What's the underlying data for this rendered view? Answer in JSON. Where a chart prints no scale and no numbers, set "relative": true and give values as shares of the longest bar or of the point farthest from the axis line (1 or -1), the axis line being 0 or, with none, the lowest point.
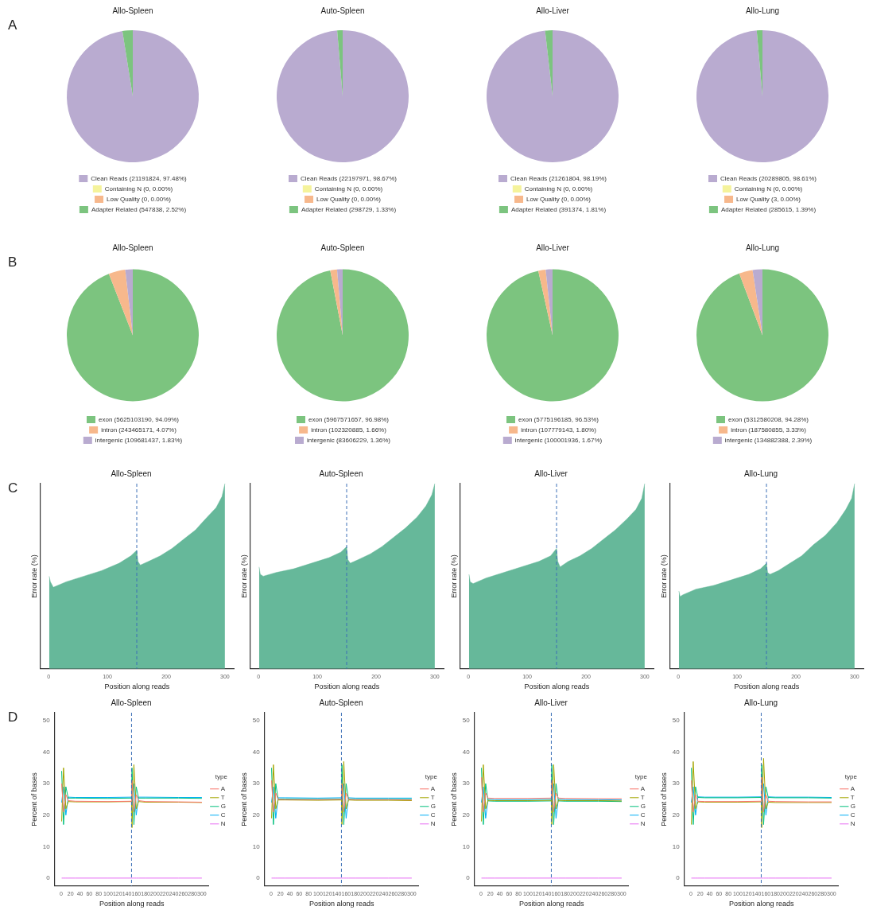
{
  "chart_data": [
    {
      "type": "pie",
      "title": "Allo-Spleen",
      "annotations": [
        "A"
      ],
      "legend": "bottom",
      "categories": [
        "Clean Reads (21191824, 97.48%)",
        "Containing N (0, 0.00%)",
        "Low Quality (0, 0.00%)",
        "Adapter Related (547838, 2.52%)"
      ],
      "values": [
        97.48,
        0,
        0,
        2.52
      ],
      "colors": [
        "#b9abd0",
        "#f5f39b",
        "#f7b88c",
        "#7cc47f"
      ]
    },
    {
      "type": "pie",
      "title": "Auto-Spleen",
      "legend": "bottom",
      "categories": [
        "Clean Reads (22197971, 98.67%)",
        "Containing N (0, 0.00%)",
        "Low Quality (0, 0.00%)",
        "Adapter Related (298729, 1.33%)"
      ],
      "values": [
        98.67,
        0,
        0,
        1.33
      ],
      "colors": [
        "#b9abd0",
        "#f5f39b",
        "#f7b88c",
        "#7cc47f"
      ]
    },
    {
      "type": "pie",
      "title": "Allo-Liver",
      "legend": "bottom",
      "categories": [
        "Clean Reads (21261804, 98.19%)",
        "Containing N (0, 0.00%)",
        "Low Quality (0, 0.00%)",
        "Adapter Related (391374, 1.81%)"
      ],
      "values": [
        98.19,
        0,
        0,
        1.81
      ],
      "colors": [
        "#b9abd0",
        "#f5f39b",
        "#f7b88c",
        "#7cc47f"
      ]
    },
    {
      "type": "pie",
      "title": "Allo-Lung",
      "legend": "bottom",
      "categories": [
        "Clean Reads (20289805, 98.61%)",
        "Containing N (0, 0.00%)",
        "Low Quality (3, 0.00%)",
        "Adapter Related (285615, 1.39%)"
      ],
      "values": [
        98.61,
        0,
        0,
        1.39
      ],
      "colors": [
        "#b9abd0",
        "#f5f39b",
        "#f7b88c",
        "#7cc47f"
      ]
    },
    {
      "type": "pie",
      "title": "Allo-Spleen",
      "annotations": [
        "B"
      ],
      "legend": "bottom",
      "categories": [
        "exon (5625103190, 94.09%)",
        "intron (243465171, 4.07%)",
        "intergenic (109681437, 1.83%)"
      ],
      "values": [
        94.09,
        4.07,
        1.83
      ],
      "colors": [
        "#7cc47f",
        "#f7b88c",
        "#b9abd0"
      ]
    },
    {
      "type": "pie",
      "title": "Auto-Spleen",
      "legend": "bottom",
      "categories": [
        "exon (5967571657, 96.98%)",
        "intron (102320885, 1.66%)",
        "intergenic (83606229, 1.36%)"
      ],
      "values": [
        96.98,
        1.66,
        1.36
      ],
      "colors": [
        "#7cc47f",
        "#f7b88c",
        "#b9abd0"
      ]
    },
    {
      "type": "pie",
      "title": "Allo-Liver",
      "legend": "bottom",
      "categories": [
        "exon (5775196185, 96.53%)",
        "intron (107779143, 1.80%)",
        "intergenic (100001936, 1.67%)"
      ],
      "values": [
        96.53,
        1.8,
        1.67
      ],
      "colors": [
        "#7cc47f",
        "#f7b88c",
        "#b9abd0"
      ]
    },
    {
      "type": "pie",
      "title": "Allo-Lung",
      "legend": "bottom",
      "categories": [
        "exon (5312580208, 94.28%)",
        "intron (187580855, 3.33%)",
        "intergenic (134882388, 2.39%)"
      ],
      "values": [
        94.28,
        3.33,
        2.39
      ],
      "colors": [
        "#7cc47f",
        "#f7b88c",
        "#b9abd0"
      ]
    },
    {
      "type": "area",
      "relative": true,
      "title": "Allo-Spleen",
      "annotations": [
        "C"
      ],
      "xlabel": "Position along reads",
      "ylabel": "Error rate (%)",
      "grid": false,
      "color": "#66b89a",
      "xlim": [
        -14,
        315
      ],
      "xticks": [
        0,
        100,
        200,
        300
      ],
      "ref_lines": [
        {
          "axis": "x",
          "value": 150,
          "color": "#3b6fb6",
          "line_style": "dashed"
        }
      ],
      "x": [
        1,
        3,
        8,
        30,
        60,
        90,
        120,
        140,
        150,
        152,
        156,
        170,
        190,
        210,
        230,
        250,
        270,
        285,
        295,
        300
      ],
      "values": [
        0.5,
        0.47,
        0.44,
        0.47,
        0.5,
        0.53,
        0.57,
        0.61,
        0.64,
        0.58,
        0.56,
        0.58,
        0.61,
        0.65,
        0.7,
        0.75,
        0.82,
        0.87,
        0.93,
        1.0
      ]
    },
    {
      "type": "area",
      "relative": true,
      "title": "Auto-Spleen",
      "xlabel": "Position along reads",
      "ylabel": "Error rate (%)",
      "grid": false,
      "color": "#66b89a",
      "xlim": [
        -14,
        315
      ],
      "xticks": [
        0,
        100,
        200,
        300
      ],
      "ref_lines": [
        {
          "axis": "x",
          "value": 150,
          "color": "#3b6fb6",
          "line_style": "dashed"
        }
      ],
      "x": [
        1,
        3,
        8,
        30,
        60,
        90,
        120,
        140,
        150,
        152,
        156,
        170,
        190,
        210,
        230,
        250,
        270,
        285,
        295,
        300
      ],
      "values": [
        0.55,
        0.51,
        0.5,
        0.52,
        0.54,
        0.57,
        0.6,
        0.63,
        0.66,
        0.59,
        0.57,
        0.59,
        0.62,
        0.66,
        0.71,
        0.76,
        0.82,
        0.88,
        0.94,
        1.0
      ]
    },
    {
      "type": "area",
      "relative": true,
      "title": "Allo-Liver",
      "xlabel": "Position along reads",
      "ylabel": "Error rate (%)",
      "grid": false,
      "color": "#66b89a",
      "xlim": [
        -14,
        315
      ],
      "xticks": [
        0,
        100,
        200,
        300
      ],
      "ref_lines": [
        {
          "axis": "x",
          "value": 150,
          "color": "#3b6fb6",
          "line_style": "dashed"
        }
      ],
      "x": [
        1,
        3,
        8,
        30,
        60,
        90,
        120,
        140,
        150,
        152,
        156,
        170,
        190,
        210,
        230,
        250,
        270,
        285,
        295,
        300
      ],
      "values": [
        0.51,
        0.47,
        0.46,
        0.49,
        0.52,
        0.55,
        0.58,
        0.61,
        0.65,
        0.58,
        0.55,
        0.58,
        0.61,
        0.65,
        0.7,
        0.75,
        0.81,
        0.86,
        0.92,
        1.0
      ]
    },
    {
      "type": "area",
      "relative": true,
      "title": "Allo-Lung",
      "xlabel": "Position along reads",
      "ylabel": "Error rate (%)",
      "grid": false,
      "color": "#66b89a",
      "xlim": [
        -14,
        315
      ],
      "xticks": [
        0,
        100,
        200,
        300
      ],
      "ref_lines": [
        {
          "axis": "x",
          "value": 150,
          "color": "#3b6fb6",
          "line_style": "dashed"
        }
      ],
      "x": [
        1,
        3,
        8,
        30,
        60,
        90,
        120,
        140,
        150,
        152,
        156,
        170,
        190,
        210,
        230,
        250,
        270,
        285,
        295,
        300
      ],
      "values": [
        0.42,
        0.39,
        0.4,
        0.43,
        0.45,
        0.48,
        0.51,
        0.54,
        0.57,
        0.52,
        0.51,
        0.53,
        0.57,
        0.61,
        0.67,
        0.72,
        0.79,
        0.86,
        0.92,
        1.0
      ]
    },
    {
      "type": "line",
      "title": "Allo-Spleen",
      "annotations": [
        "D"
      ],
      "xlabel": "Position along reads",
      "ylabel": "Percent of bases",
      "legend_title": "type",
      "legend": "right",
      "grid": false,
      "marker": "none",
      "xlim": [
        -14,
        315
      ],
      "ylim": [
        -2.5,
        52.5
      ],
      "yticks": [
        0,
        10,
        20,
        30,
        40,
        50
      ],
      "xticks": [
        0,
        20,
        40,
        60,
        80,
        100,
        120,
        140,
        160,
        180,
        200,
        220,
        240,
        260,
        280,
        300
      ],
      "ref_lines": [
        {
          "axis": "x",
          "value": 150,
          "color": "#3b6fb6",
          "line_style": "dashed"
        }
      ],
      "x": [
        1,
        5,
        10,
        15,
        30,
        100,
        150,
        151,
        155,
        160,
        165,
        180,
        250,
        300
      ],
      "series": [
        {
          "name": "A",
          "color": "#f8766d",
          "values": [
            30,
            21,
            26.5,
            24.6,
            24.4,
            24.3,
            24.4,
            31,
            21,
            26.5,
            24.6,
            24.3,
            24.2,
            24.1
          ]
        },
        {
          "name": "T",
          "color": "#a3a500",
          "values": [
            18,
            35,
            22,
            24.3,
            24.2,
            24.2,
            24.3,
            16,
            36,
            22,
            24.3,
            24.1,
            24.1,
            24.0
          ]
        },
        {
          "name": "G",
          "color": "#00bf7d",
          "values": [
            34,
            17,
            29,
            25.4,
            25.4,
            25.3,
            25.4,
            35,
            17,
            29,
            25.4,
            25.4,
            25.4,
            25.3
          ]
        },
        {
          "name": "C",
          "color": "#00b0f6",
          "values": [
            24,
            29,
            20,
            25.7,
            25.6,
            25.6,
            25.7,
            23,
            30,
            20,
            25.7,
            25.7,
            25.6,
            25.6
          ]
        },
        {
          "name": "N",
          "color": "#e76bf3",
          "values": [
            0,
            0,
            0,
            0,
            0,
            0,
            0,
            0,
            0,
            0,
            0,
            0,
            0,
            0
          ]
        }
      ]
    },
    {
      "type": "line",
      "title": "Auto-Spleen",
      "xlabel": "Position along reads",
      "ylabel": "Percent of bases",
      "legend_title": "type",
      "legend": "right",
      "grid": false,
      "marker": "none",
      "xlim": [
        -14,
        315
      ],
      "ylim": [
        -2.5,
        52.5
      ],
      "yticks": [
        0,
        10,
        20,
        30,
        40,
        50
      ],
      "xticks": [
        0,
        20,
        40,
        60,
        80,
        100,
        120,
        140,
        160,
        180,
        200,
        220,
        240,
        260,
        280,
        300
      ],
      "ref_lines": [
        {
          "axis": "x",
          "value": 150,
          "color": "#3b6fb6",
          "line_style": "dashed"
        }
      ],
      "x": [
        1,
        5,
        10,
        15,
        30,
        100,
        150,
        151,
        155,
        160,
        165,
        180,
        250,
        300
      ],
      "series": [
        {
          "name": "A",
          "color": "#f8766d",
          "values": [
            31,
            21,
            27,
            25,
            24.9,
            24.9,
            25,
            30,
            21,
            27,
            25,
            24.9,
            24.9,
            24.8
          ]
        },
        {
          "name": "T",
          "color": "#a3a500",
          "values": [
            19,
            36,
            22,
            24.8,
            24.8,
            24.7,
            24.8,
            17,
            37,
            22,
            24.8,
            24.7,
            24.7,
            24.6
          ]
        },
        {
          "name": "G",
          "color": "#00bf7d",
          "values": [
            35,
            17,
            30,
            25.1,
            25.1,
            25.0,
            25.1,
            36,
            17,
            30,
            25.1,
            25.0,
            25.0,
            25.0
          ]
        },
        {
          "name": "C",
          "color": "#00b0f6",
          "values": [
            24,
            29,
            19,
            25.5,
            25.5,
            25.4,
            25.5,
            23,
            30,
            19,
            25.5,
            25.4,
            25.4,
            25.4
          ]
        },
        {
          "name": "N",
          "color": "#e76bf3",
          "values": [
            0,
            0,
            0,
            0,
            0,
            0,
            0,
            0,
            0,
            0,
            0,
            0,
            0,
            0
          ]
        }
      ]
    },
    {
      "type": "line",
      "title": "Allo-Liver",
      "xlabel": "Position along reads",
      "ylabel": "Percent of bases",
      "legend_title": "type",
      "legend": "right",
      "grid": false,
      "marker": "none",
      "xlim": [
        -14,
        315
      ],
      "ylim": [
        -2.5,
        52.5
      ],
      "yticks": [
        0,
        10,
        20,
        30,
        40,
        50
      ],
      "xticks": [
        0,
        20,
        40,
        60,
        80,
        100,
        120,
        140,
        160,
        180,
        200,
        220,
        240,
        260,
        280,
        300
      ],
      "ref_lines": [
        {
          "axis": "x",
          "value": 150,
          "color": "#3b6fb6",
          "line_style": "dashed"
        }
      ],
      "x": [
        1,
        5,
        10,
        15,
        30,
        100,
        150,
        151,
        155,
        160,
        165,
        180,
        250,
        300
      ],
      "series": [
        {
          "name": "A",
          "color": "#f8766d",
          "values": [
            32,
            21,
            27,
            25.4,
            25.3,
            25.3,
            25.4,
            31,
            21,
            27,
            25.4,
            25.3,
            25.2,
            25.2
          ]
        },
        {
          "name": "T",
          "color": "#a3a500",
          "values": [
            18,
            36,
            22,
            24.7,
            24.6,
            24.6,
            24.7,
            17,
            36,
            22,
            24.7,
            24.6,
            24.6,
            24.5
          ]
        },
        {
          "name": "G",
          "color": "#00bf7d",
          "values": [
            35,
            17,
            30,
            24.5,
            24.4,
            24.4,
            24.5,
            36,
            17,
            30,
            24.5,
            24.4,
            24.4,
            24.3
          ]
        },
        {
          "name": "C",
          "color": "#00b0f6",
          "values": [
            24,
            29,
            19,
            25.0,
            24.9,
            24.9,
            25.0,
            23,
            30,
            19,
            25.0,
            24.9,
            24.9,
            24.8
          ]
        },
        {
          "name": "N",
          "color": "#e76bf3",
          "values": [
            0,
            0,
            0,
            0,
            0,
            0,
            0,
            0,
            0,
            0,
            0,
            0,
            0,
            0
          ]
        }
      ]
    },
    {
      "type": "line",
      "title": "Allo-Lung",
      "xlabel": "Position along reads",
      "ylabel": "Percent of bases",
      "legend_title": "type",
      "legend": "right",
      "grid": false,
      "marker": "none",
      "xlim": [
        -14,
        315
      ],
      "ylim": [
        -2.5,
        52.5
      ],
      "yticks": [
        0,
        10,
        20,
        30,
        40,
        50
      ],
      "xticks": [
        0,
        20,
        40,
        60,
        80,
        100,
        120,
        140,
        160,
        180,
        200,
        220,
        240,
        260,
        280,
        300
      ],
      "ref_lines": [
        {
          "axis": "x",
          "value": 150,
          "color": "#3b6fb6",
          "line_style": "dashed"
        }
      ],
      "x": [
        1,
        5,
        10,
        15,
        30,
        100,
        150,
        151,
        155,
        160,
        165,
        180,
        250,
        300
      ],
      "series": [
        {
          "name": "A",
          "color": "#f8766d",
          "values": [
            31,
            21,
            26.5,
            24.4,
            24.3,
            24.3,
            24.4,
            32,
            21,
            26.5,
            24.4,
            24.3,
            24.2,
            24.2
          ]
        },
        {
          "name": "T",
          "color": "#a3a500",
          "values": [
            17,
            37,
            22,
            24.2,
            24.1,
            24.1,
            24.2,
            16,
            38,
            22,
            24.1,
            24.0,
            24.0,
            24.0
          ]
        },
        {
          "name": "G",
          "color": "#00bf7d",
          "values": [
            35,
            17,
            29,
            25.6,
            25.5,
            25.5,
            25.6,
            36,
            17,
            29,
            25.6,
            25.5,
            25.5,
            25.4
          ]
        },
        {
          "name": "C",
          "color": "#00b0f6",
          "values": [
            24,
            29,
            20,
            25.8,
            25.7,
            25.7,
            25.8,
            23,
            30,
            20,
            25.8,
            25.7,
            25.7,
            25.6
          ]
        },
        {
          "name": "N",
          "color": "#e76bf3",
          "values": [
            0,
            0,
            0,
            0,
            0,
            0,
            0,
            0,
            0,
            0,
            0,
            0,
            0,
            0
          ]
        }
      ]
    }
  ]
}
